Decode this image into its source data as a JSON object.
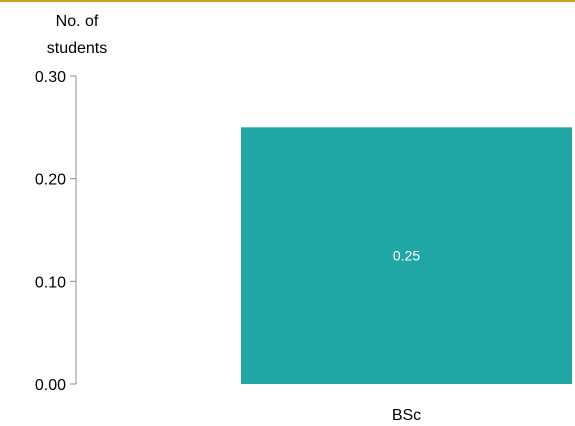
{
  "chart_data": {
    "type": "bar",
    "ylabel_line1": "No. of",
    "ylabel_line2": "students",
    "categories": [
      "BSc"
    ],
    "values": [
      0.25
    ],
    "data_labels": [
      "0.25"
    ],
    "ylim": [
      0,
      0.3
    ],
    "yticks": [
      0.0,
      0.1,
      0.2,
      0.3
    ],
    "ytick_labels": [
      "0.00",
      "0.10",
      "0.20",
      "0.30"
    ],
    "grid": false,
    "legend": false,
    "colors": {
      "bar": "#20A6A4",
      "axis": "#8c8c8c",
      "text": "#000000",
      "data_label": "#ffffff",
      "top_rule": "#C9A227"
    }
  }
}
